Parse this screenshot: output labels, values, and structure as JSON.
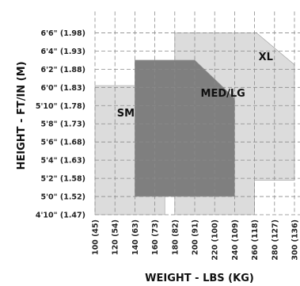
{
  "chart_data": {
    "type": "area",
    "title": "",
    "xlabel": "WEIGHT - LBS (KG)",
    "ylabel": "HEIGHT - FT/IN (M)",
    "xlim": [
      100,
      300
    ],
    "ylim": [
      58,
      80
    ],
    "grid": true,
    "x_ticks": [
      {
        "value": 100,
        "label": "100 (45)"
      },
      {
        "value": 120,
        "label": "120 (54)"
      },
      {
        "value": 140,
        "label": "140 (63)"
      },
      {
        "value": 160,
        "label": "160 (73)"
      },
      {
        "value": 180,
        "label": "180 (82)"
      },
      {
        "value": 200,
        "label": "200 (91)"
      },
      {
        "value": 220,
        "label": "220 (100)"
      },
      {
        "value": 240,
        "label": "240 (109)"
      },
      {
        "value": 260,
        "label": "260 (118)"
      },
      {
        "value": 280,
        "label": "280 (127)"
      },
      {
        "value": 300,
        "label": "300 (136)"
      }
    ],
    "y_ticks": [
      {
        "value": 78,
        "label": "6'6\" (1.98)"
      },
      {
        "value": 76,
        "label": "6'4\" (1.93)"
      },
      {
        "value": 74,
        "label": "6'2\" (1.88)"
      },
      {
        "value": 72,
        "label": "6'0\" (1.83)"
      },
      {
        "value": 70,
        "label": "5'10\" (1.78)"
      },
      {
        "value": 68,
        "label": "5'8\" (1.73)"
      },
      {
        "value": 66,
        "label": "5'6\" (1.68)"
      },
      {
        "value": 64,
        "label": "5'4\" (1.63)"
      },
      {
        "value": 62,
        "label": "5'2\" (1.58)"
      },
      {
        "value": 60,
        "label": "5'0\" (1.52)"
      },
      {
        "value": 58,
        "label": "4'10\" (1.47)"
      }
    ],
    "regions": [
      {
        "name": "XL",
        "color": "#dcdcdc",
        "label_at": [
          264,
          75
        ],
        "polygon": [
          [
            180,
            58
          ],
          [
            180,
            78
          ],
          [
            262,
            78
          ],
          [
            300,
            74.5
          ],
          [
            300,
            61.8
          ],
          [
            260,
            61.8
          ],
          [
            260,
            58
          ]
        ]
      },
      {
        "name": "SM",
        "color": "#dcdcdc",
        "label_at": [
          122,
          68.8
        ],
        "polygon": [
          [
            100,
            58
          ],
          [
            100,
            72.2
          ],
          [
            140,
            72.2
          ],
          [
            170,
            68.8
          ],
          [
            170,
            58
          ]
        ]
      },
      {
        "name": "MED/LG",
        "color": "#7f7f7f",
        "label_at": [
          206,
          71
        ],
        "polygon": [
          [
            140,
            60
          ],
          [
            140,
            75
          ],
          [
            200,
            75
          ],
          [
            224,
            72.5
          ],
          [
            240,
            70.8
          ],
          [
            240,
            60
          ]
        ]
      }
    ],
    "tick_label_color": "#222222",
    "grid_color": "#8a8a8a"
  }
}
